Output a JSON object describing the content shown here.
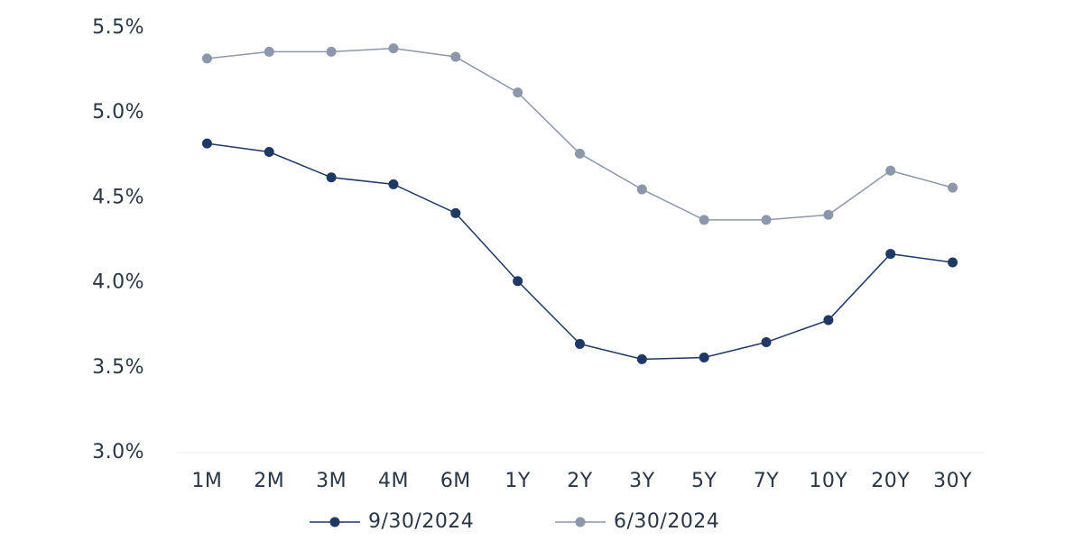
{
  "chart_data": {
    "type": "line",
    "categories": [
      "1M",
      "2M",
      "3M",
      "4M",
      "6M",
      "1Y",
      "2Y",
      "3Y",
      "5Y",
      "7Y",
      "10Y",
      "20Y",
      "30Y"
    ],
    "series": [
      {
        "name": "9/30/2024",
        "color": "#1f3864",
        "values": [
          4.82,
          4.77,
          4.62,
          4.58,
          4.41,
          4.01,
          3.64,
          3.55,
          3.56,
          3.65,
          3.78,
          4.17,
          4.12
        ]
      },
      {
        "name": "6/30/2024",
        "color": "#8e96aa",
        "values": [
          5.32,
          5.36,
          5.36,
          5.38,
          5.33,
          5.12,
          4.76,
          4.55,
          4.37,
          4.37,
          4.4,
          4.66,
          4.56
        ]
      }
    ],
    "ylim": [
      3.0,
      5.5
    ],
    "yticks": [
      {
        "value": 3.0,
        "label": "3.0%"
      },
      {
        "value": 3.5,
        "label": "3.5%"
      },
      {
        "value": 4.0,
        "label": "4.0%"
      },
      {
        "value": 4.5,
        "label": "4.5%"
      },
      {
        "value": 5.0,
        "label": "5.0%"
      },
      {
        "value": 5.5,
        "label": "5.5%"
      }
    ],
    "legend": "bottom"
  }
}
